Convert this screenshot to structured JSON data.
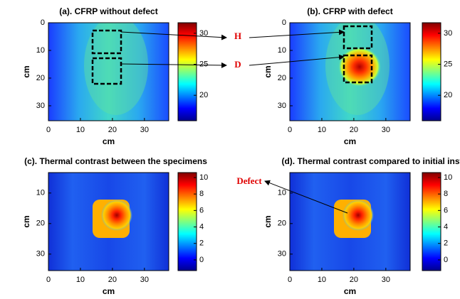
{
  "chart_data": [
    {
      "type": "heatmap",
      "title": "(a). CFRP without defect",
      "xlabel": "cm",
      "ylabel": "cm",
      "xlim": [
        0,
        37.6
      ],
      "ylim": [
        0,
        35.4
      ],
      "y_reversed": true,
      "xticks": [
        0,
        10,
        20,
        30
      ],
      "yticks": [
        0,
        10,
        20,
        30
      ],
      "clim": [
        15.9,
        31.7
      ],
      "cticks": [
        20,
        25,
        30
      ],
      "colormap": "jet"
    },
    {
      "type": "heatmap",
      "title": "(b). CFRP with defect",
      "xlabel": "cm",
      "ylabel": "cm",
      "xlim": [
        0,
        37.6
      ],
      "ylim": [
        0,
        35.4
      ],
      "y_reversed": true,
      "xticks": [
        0,
        10,
        20,
        30
      ],
      "yticks": [
        0,
        10,
        20,
        30
      ],
      "clim": [
        15.9,
        31.7
      ],
      "cticks": [
        20,
        25,
        30
      ],
      "colormap": "jet"
    },
    {
      "type": "heatmap",
      "title": "(c). Thermal contrast between the specimens",
      "xlabel": "cm",
      "ylabel": "cm",
      "xlim": [
        0,
        37.6
      ],
      "ylim": [
        3.3,
        35.4
      ],
      "y_reversed": true,
      "xticks": [
        0,
        10,
        20,
        30
      ],
      "yticks": [
        10,
        20,
        30
      ],
      "clim": [
        -1.3,
        10.6
      ],
      "cticks": [
        0,
        2,
        4,
        6,
        8,
        10
      ],
      "colormap": "jet"
    },
    {
      "type": "heatmap",
      "title": "(d). Thermal contrast compared to initial instant",
      "xlabel": "cm",
      "ylabel": "cm",
      "xlim": [
        0,
        37.6
      ],
      "ylim": [
        3.3,
        35.4
      ],
      "y_reversed": true,
      "xticks": [
        0,
        10,
        20,
        30
      ],
      "yticks": [
        10,
        20,
        30
      ],
      "clim": [
        -1.3,
        10.6
      ],
      "cticks": [
        0,
        2,
        4,
        6,
        8,
        10
      ],
      "colormap": "jet"
    }
  ],
  "annotations": [
    "H",
    "D",
    "Defect"
  ]
}
